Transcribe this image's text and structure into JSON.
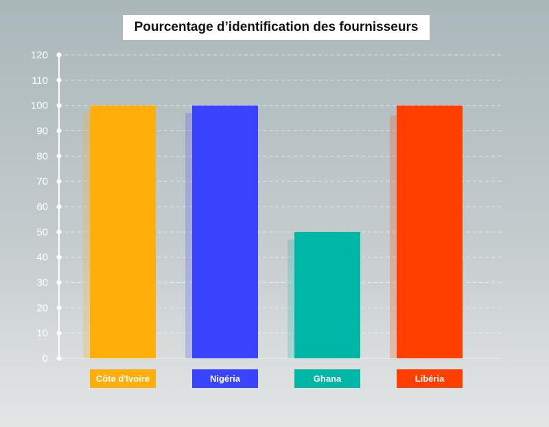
{
  "chart_data": {
    "type": "bar",
    "title": "Pourcentage d’identification des fournisseurs",
    "categories": [
      "Côte d'Ivoire",
      "Nigéria",
      "Ghana",
      "Libéria"
    ],
    "values": [
      100,
      100,
      50,
      100
    ],
    "shadow_values": [
      97,
      97,
      47,
      96
    ],
    "colors": [
      "#ffae0a",
      "#3a44ff",
      "#00b6a4",
      "#ff3f00"
    ],
    "yticks": [
      0,
      10,
      20,
      30,
      40,
      50,
      60,
      70,
      80,
      90,
      100,
      110,
      120
    ],
    "ylim": [
      0,
      120
    ],
    "grid": true,
    "xlabel": "",
    "ylabel": ""
  }
}
